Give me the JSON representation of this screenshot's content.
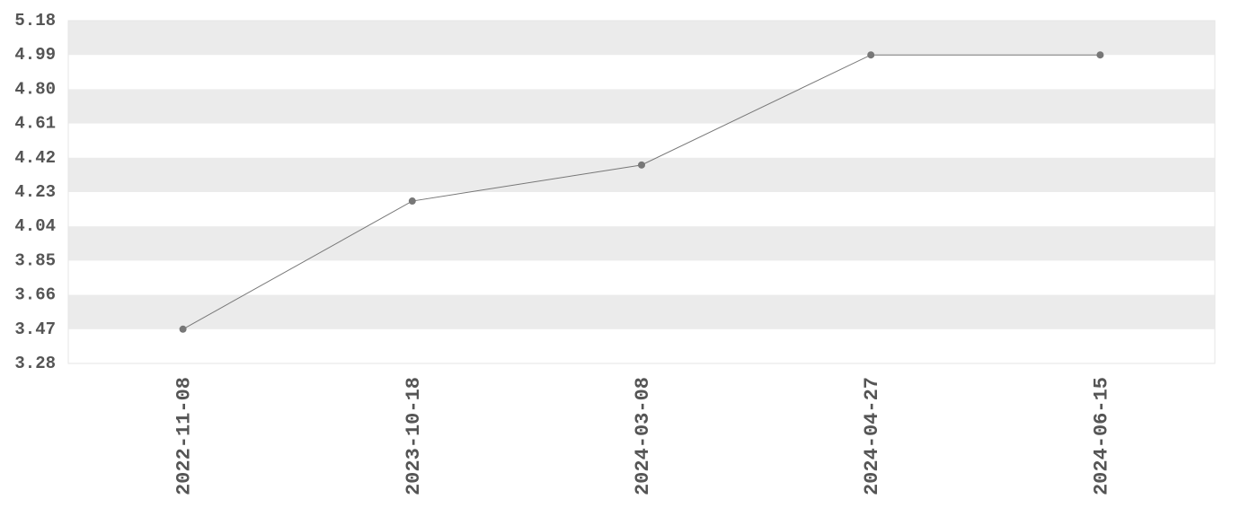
{
  "chart_data": {
    "type": "line",
    "title": "",
    "xlabel": "",
    "ylabel": "",
    "categories": [
      "2022-11-08",
      "2023-10-18",
      "2024-03-08",
      "2024-04-27",
      "2024-06-15"
    ],
    "values": [
      3.47,
      4.18,
      4.38,
      4.99,
      4.99
    ],
    "ylim": [
      3.28,
      5.18
    ],
    "yticks": [
      "3.28",
      "3.47",
      "3.66",
      "3.85",
      "4.04",
      "4.23",
      "4.42",
      "4.61",
      "4.80",
      "4.99",
      "5.18"
    ],
    "grid": "alternating horizontal bands",
    "legend": "none",
    "colors": {
      "line": "#777777",
      "marker": "#777777",
      "band": "#ebebeb",
      "text": "#555555"
    }
  }
}
